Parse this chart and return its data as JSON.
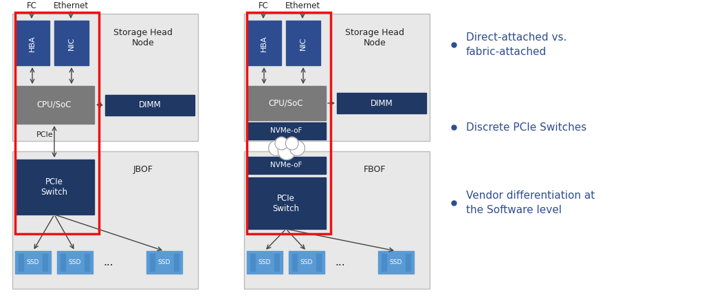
{
  "bg_color": "#ffffff",
  "light_gray": "#e8e8e8",
  "dark_blue": "#1f3864",
  "medium_blue": "#2e4d91",
  "light_blue": "#5b9bd5",
  "ssd_stripe": "#4a8cc7",
  "gray_box": "#7a7a7a",
  "red_highlight": "#ee1111",
  "text_dark": "#222222",
  "text_blue": "#2e4d91",
  "bullet_color": "#2e4d91",
  "bullet_items": [
    "Direct-attached vs.\nfabric-attached",
    "Discrete PCIe Switches",
    "Vendor differentiation at\nthe Software level"
  ]
}
